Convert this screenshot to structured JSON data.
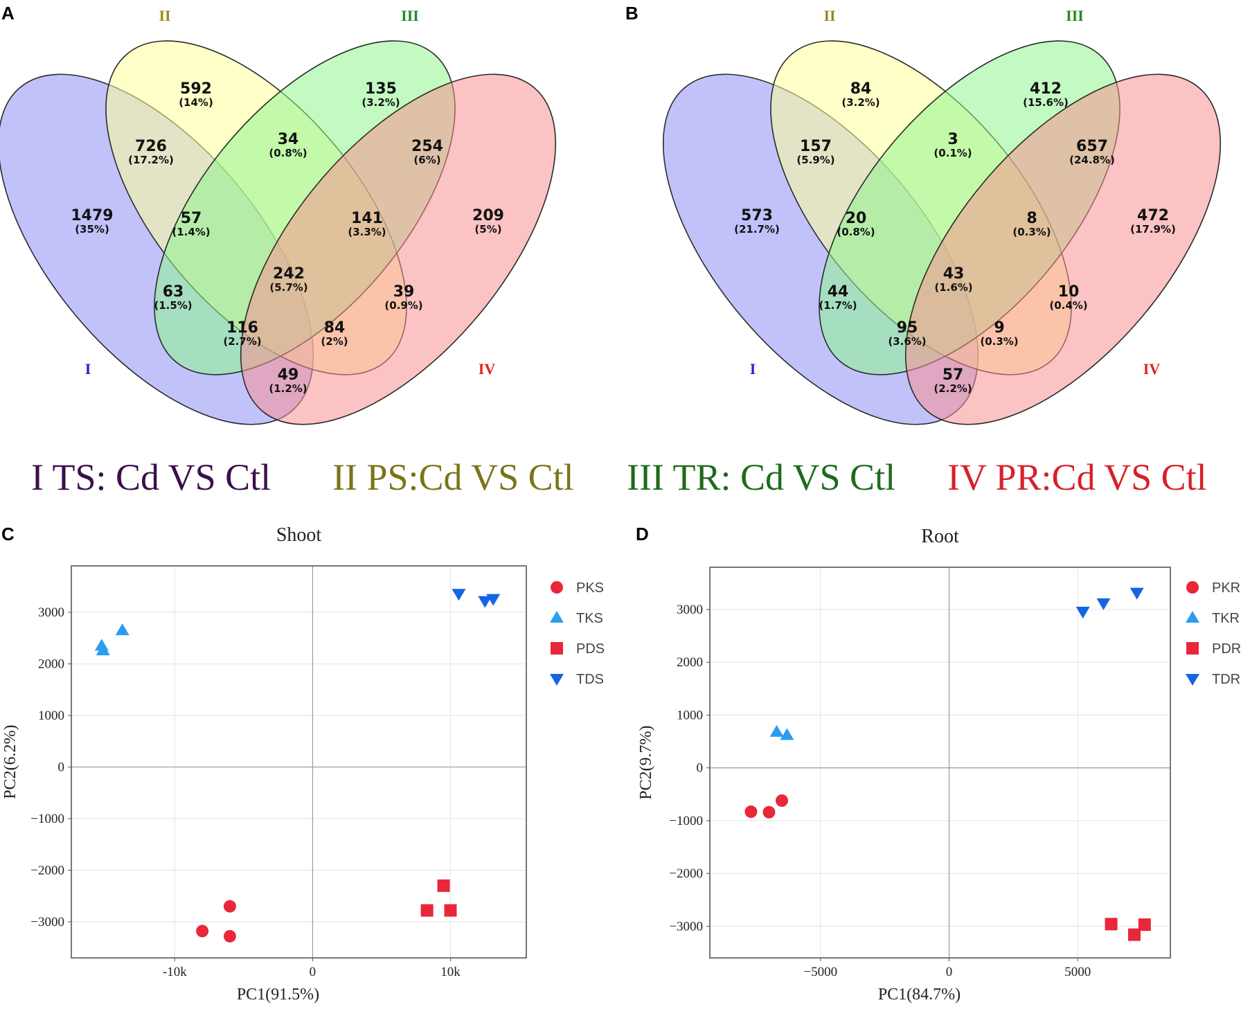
{
  "panel_labels": [
    "A",
    "B",
    "C",
    "D"
  ],
  "legend": [
    {
      "text": "I TS: Cd VS Ctl",
      "color": "#3a0f4a"
    },
    {
      "text": "II PS:Cd VS Ctl",
      "color": "#7a7417"
    },
    {
      "text": "III TR: Cd VS Ctl",
      "color": "#1d6b1d"
    },
    {
      "text": "IV PR:Cd VS Ctl",
      "color": "#d8202a"
    }
  ],
  "colors": {
    "set_I": "#8f8ff7",
    "set_II": "#ffff9a",
    "set_III": "#8ff58f",
    "set_IV": "#f79292",
    "numeral_I": "#2222cc",
    "numeral_II": "#9a8a16",
    "numeral_III": "#1f8c1f",
    "numeral_IV": "#e02020",
    "red_marker": "#e8273a",
    "light_blue_marker": "#2b9cf0",
    "dark_blue_marker": "#1465e6"
  },
  "chart_data": [
    {
      "type": "venn",
      "panel": "A",
      "sets": [
        "I",
        "II",
        "III",
        "IV"
      ],
      "regions": [
        {
          "key": "I",
          "count": "1479",
          "pct": "(35%)"
        },
        {
          "key": "II",
          "count": "592",
          "pct": "(14%)"
        },
        {
          "key": "III",
          "count": "135",
          "pct": "(3.2%)"
        },
        {
          "key": "IV",
          "count": "209",
          "pct": "(5%)"
        },
        {
          "key": "I_II",
          "count": "726",
          "pct": "(17.2%)"
        },
        {
          "key": "II_III",
          "count": "34",
          "pct": "(0.8%)"
        },
        {
          "key": "III_IV",
          "count": "254",
          "pct": "(6%)"
        },
        {
          "key": "I_II_III",
          "count": "57",
          "pct": "(1.4%)"
        },
        {
          "key": "II_III_IV",
          "count": "141",
          "pct": "(3.3%)"
        },
        {
          "key": "I_III",
          "count": "63",
          "pct": "(1.5%)"
        },
        {
          "key": "I_II_III_IV",
          "count": "242",
          "pct": "(5.7%)"
        },
        {
          "key": "II_IV",
          "count": "39",
          "pct": "(0.9%)"
        },
        {
          "key": "I_III_IV",
          "count": "116",
          "pct": "(2.7%)"
        },
        {
          "key": "I_II_IV",
          "count": "84",
          "pct": "(2%)"
        },
        {
          "key": "I_IV",
          "count": "49",
          "pct": "(1.2%)"
        }
      ]
    },
    {
      "type": "venn",
      "panel": "B",
      "sets": [
        "I",
        "II",
        "III",
        "IV"
      ],
      "regions": [
        {
          "key": "I",
          "count": "573",
          "pct": "(21.7%)"
        },
        {
          "key": "II",
          "count": "84",
          "pct": "(3.2%)"
        },
        {
          "key": "III",
          "count": "412",
          "pct": "(15.6%)"
        },
        {
          "key": "IV",
          "count": "472",
          "pct": "(17.9%)"
        },
        {
          "key": "I_II",
          "count": "157",
          "pct": "(5.9%)"
        },
        {
          "key": "II_III",
          "count": "3",
          "pct": "(0.1%)"
        },
        {
          "key": "III_IV",
          "count": "657",
          "pct": "(24.8%)"
        },
        {
          "key": "I_II_III",
          "count": "20",
          "pct": "(0.8%)"
        },
        {
          "key": "II_III_IV",
          "count": "8",
          "pct": "(0.3%)"
        },
        {
          "key": "I_III",
          "count": "44",
          "pct": "(1.7%)"
        },
        {
          "key": "I_II_III_IV",
          "count": "43",
          "pct": "(1.6%)"
        },
        {
          "key": "II_IV",
          "count": "10",
          "pct": "(0.4%)"
        },
        {
          "key": "I_III_IV",
          "count": "95",
          "pct": "(3.6%)"
        },
        {
          "key": "I_II_IV",
          "count": "9",
          "pct": "(0.3%)"
        },
        {
          "key": "I_IV",
          "count": "57",
          "pct": "(2.2%)"
        }
      ]
    },
    {
      "type": "scatter",
      "panel": "C",
      "title": "Shoot",
      "xlabel": "PC1(91.5%)",
      "ylabel": "PC2(6.2%)",
      "xlim": [
        -17500,
        15500
      ],
      "ylim": [
        -3700,
        3900
      ],
      "xticks": [
        -10000,
        0,
        10000
      ],
      "xtick_labels": [
        "-10k",
        "0",
        "10k"
      ],
      "yticks": [
        -3000,
        -2000,
        -1000,
        0,
        1000,
        2000,
        3000
      ],
      "ytick_labels": [
        "−3000",
        "−2000",
        "−1000",
        "0",
        "1000",
        "2000",
        "3000"
      ],
      "grid": true,
      "series": [
        {
          "name": "PKS",
          "marker": "circle",
          "color": "#e8273a",
          "points": [
            [
              -8000,
              -3180
            ],
            [
              -6000,
              -3280
            ],
            [
              -6000,
              -2700
            ]
          ]
        },
        {
          "name": "TKS",
          "marker": "triangle-up",
          "color": "#2b9cf0",
          "points": [
            [
              -15300,
              2350
            ],
            [
              -15200,
              2260
            ],
            [
              -13800,
              2650
            ]
          ]
        },
        {
          "name": "PDS",
          "marker": "square",
          "color": "#e8273a",
          "points": [
            [
              8300,
              -2780
            ],
            [
              9500,
              -2300
            ],
            [
              10000,
              -2780
            ]
          ]
        },
        {
          "name": "TDS",
          "marker": "triangle-down",
          "color": "#1465e6",
          "points": [
            [
              10600,
              3360
            ],
            [
              12500,
              3220
            ],
            [
              13100,
              3260
            ]
          ]
        }
      ]
    },
    {
      "type": "scatter",
      "panel": "D",
      "title": "Root",
      "xlabel": "PC1(84.7%)",
      "ylabel": "PC2(9.7%)",
      "xlim": [
        -9300,
        8600
      ],
      "ylim": [
        -3600,
        3800
      ],
      "xticks": [
        -5000,
        0,
        5000
      ],
      "xtick_labels": [
        "−5000",
        "0",
        "5000"
      ],
      "yticks": [
        -3000,
        -2000,
        -1000,
        0,
        1000,
        2000,
        3000
      ],
      "ytick_labels": [
        "−3000",
        "−2000",
        "−1000",
        "0",
        "1000",
        "2000",
        "3000"
      ],
      "grid": true,
      "series": [
        {
          "name": "PKR",
          "marker": "circle",
          "color": "#e8273a",
          "points": [
            [
              -7700,
              -830
            ],
            [
              -7000,
              -840
            ],
            [
              -6500,
              -620
            ]
          ]
        },
        {
          "name": "TKR",
          "marker": "triangle-up",
          "color": "#2b9cf0",
          "points": [
            [
              -6700,
              680
            ],
            [
              -6300,
              620
            ]
          ]
        },
        {
          "name": "PDR",
          "marker": "square",
          "color": "#e8273a",
          "points": [
            [
              6300,
              -2960
            ],
            [
              7200,
              -3160
            ],
            [
              7600,
              -2970
            ]
          ]
        },
        {
          "name": "TDR",
          "marker": "triangle-down",
          "color": "#1465e6",
          "points": [
            [
              5200,
              2960
            ],
            [
              6000,
              3120
            ],
            [
              7300,
              3320
            ]
          ]
        }
      ]
    }
  ]
}
